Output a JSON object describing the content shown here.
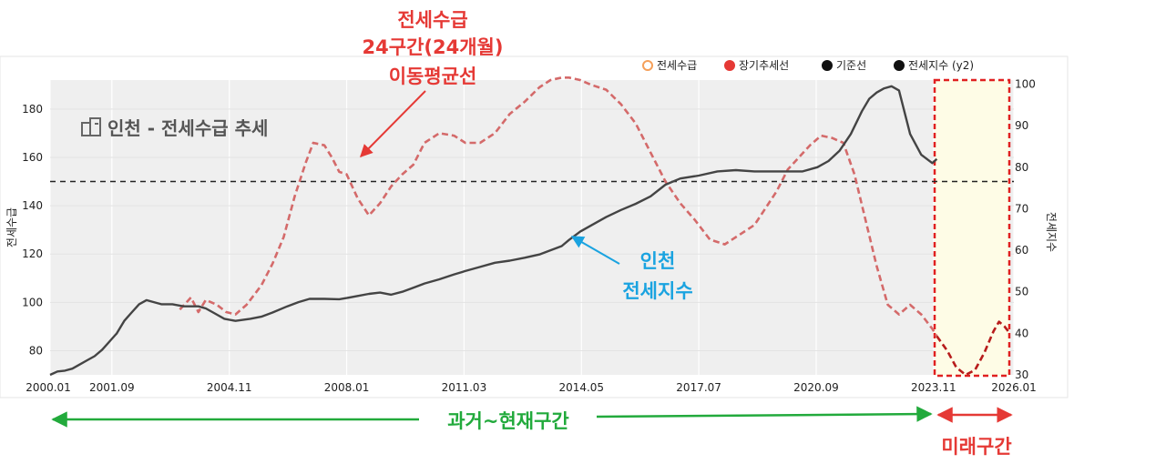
{
  "chart_data": {
    "type": "line",
    "title": "인천 - 전세수급 추세",
    "ylabel": "전세수급",
    "y2label": "전세지수",
    "ylim": [
      70,
      192
    ],
    "y2lim": [
      30,
      101
    ],
    "yticks": [
      80,
      100,
      120,
      140,
      160,
      180
    ],
    "y2ticks": [
      30,
      40,
      50,
      60,
      70,
      80,
      90,
      100
    ],
    "xticks": [
      "2000.01",
      "2001.09",
      "2004.11",
      "2008.01",
      "2011.03",
      "2014.05",
      "2017.07",
      "2020.09",
      "2023.11",
      "2026.01"
    ],
    "xrange": [
      2000.0,
      2026.0
    ],
    "grid": true,
    "legend_position": "top-right",
    "reference_line": 150,
    "legend": [
      {
        "name": "전세수급",
        "color": "#f5a05a",
        "marker": "open-circle"
      },
      {
        "name": "장기추세선",
        "color": "#e53935",
        "marker": "filled-circle"
      },
      {
        "name": "기준선",
        "color": "#111111",
        "marker": "filled-circle"
      },
      {
        "name": "전세지수 (y2)",
        "color": "#111111",
        "marker": "filled-circle"
      }
    ],
    "series": [
      {
        "name": "장기추세선",
        "axis": "y",
        "color": "#d46a6a",
        "dash": true,
        "x": [
          2003.5,
          2003.8,
          2004.0,
          2004.2,
          2004.5,
          2004.75,
          2005.0,
          2005.3,
          2005.7,
          2006.0,
          2006.3,
          2006.6,
          2006.9,
          2007.1,
          2007.4,
          2007.6,
          2007.8,
          2008.0,
          2008.3,
          2008.6,
          2008.9,
          2009.2,
          2009.5,
          2009.8,
          2010.1,
          2010.5,
          2010.9,
          2011.2,
          2011.6,
          2012.0,
          2012.4,
          2012.8,
          2013.2,
          2013.5,
          2013.8,
          2014.0,
          2014.3,
          2014.6,
          2015.0,
          2015.4,
          2015.8,
          2016.2,
          2016.6,
          2017.0,
          2017.4,
          2017.8,
          2018.2,
          2018.6,
          2019.0,
          2019.3,
          2019.6,
          2019.9,
          2020.2,
          2020.5,
          2020.8,
          2021.1,
          2021.4,
          2021.7,
          2022.0,
          2022.3,
          2022.6,
          2022.9,
          2023.2,
          2023.5,
          2023.8,
          2023.92
        ],
        "values": [
          97,
          102,
          96,
          101,
          99,
          96,
          95,
          99,
          107,
          116,
          127,
          144,
          158,
          166,
          165,
          160,
          154,
          153,
          143,
          136,
          141,
          148,
          153,
          157,
          166,
          170,
          169,
          166,
          166,
          170,
          178,
          183,
          189,
          192,
          193,
          193,
          192,
          190,
          188,
          182,
          174,
          162,
          150,
          141,
          134,
          126,
          124,
          128,
          132,
          139,
          146,
          155,
          160,
          165,
          169,
          168,
          166,
          153,
          134,
          115,
          99,
          95,
          99,
          95,
          89,
          86
        ]
      },
      {
        "name": "장기추세선 (미래)",
        "axis": "y",
        "color": "#b71c1c",
        "dash": true,
        "x": [
          2023.92,
          2024.2,
          2024.45,
          2024.7,
          2024.95,
          2025.2,
          2025.45,
          2025.6,
          2025.75,
          2025.85
        ],
        "values": [
          86,
          80,
          73,
          70,
          72,
          79,
          88,
          92,
          90,
          88
        ]
      },
      {
        "name": "전세지수 (y2)",
        "axis": "y2",
        "color": "#444444",
        "dash": false,
        "x": [
          2000.0,
          2000.2,
          2000.4,
          2000.6,
          2000.8,
          2001.0,
          2001.2,
          2001.4,
          2001.6,
          2001.8,
          2002.0,
          2002.2,
          2002.4,
          2002.6,
          2002.8,
          2003.0,
          2003.3,
          2003.6,
          2004.0,
          2004.2,
          2004.4,
          2004.7,
          2005.0,
          2005.4,
          2005.7,
          2006.0,
          2006.4,
          2006.7,
          2007.0,
          2007.4,
          2007.8,
          2008.0,
          2008.3,
          2008.6,
          2008.9,
          2009.2,
          2009.5,
          2009.8,
          2010.1,
          2010.5,
          2010.9,
          2011.2,
          2011.6,
          2012.0,
          2012.4,
          2012.8,
          2013.2,
          2013.5,
          2013.8,
          2014.0,
          2014.3,
          2014.6,
          2015.0,
          2015.4,
          2015.8,
          2016.2,
          2016.6,
          2017.0,
          2017.5,
          2018.0,
          2018.5,
          2019.0,
          2019.5,
          2019.9,
          2020.3,
          2020.7,
          2021.0,
          2021.3,
          2021.6,
          2021.9,
          2022.1,
          2022.3,
          2022.5,
          2022.7,
          2022.9,
          2023.2,
          2023.5,
          2023.8,
          2023.92
        ],
        "values": [
          30,
          30.8,
          31,
          31.5,
          32.5,
          33.5,
          34.5,
          36,
          38,
          40,
          43,
          45,
          47,
          48,
          47.5,
          47,
          47,
          46.5,
          46.5,
          46,
          45,
          43.5,
          43,
          43.5,
          44,
          45,
          46.5,
          47.5,
          48.3,
          48.3,
          48.2,
          48.5,
          49,
          49.5,
          49.8,
          49.3,
          50,
          51,
          52,
          53,
          54.2,
          55,
          56,
          57,
          57.5,
          58.2,
          59,
          60,
          61,
          62.5,
          64.5,
          66,
          68,
          69.7,
          71.2,
          73,
          75.8,
          77.3,
          78,
          79,
          79.3,
          79,
          79,
          79,
          79,
          80,
          81.5,
          84,
          88,
          93.5,
          96.5,
          98,
          99,
          99.5,
          98.5,
          88,
          83,
          81,
          82
        ]
      }
    ]
  },
  "annotations": {
    "trend_note_lines": [
      "전세수급",
      "24구간(24개월)",
      "이동평균선"
    ],
    "index_note_lines": [
      "인천",
      "전세지수"
    ],
    "past_label": "과거~현재구간",
    "future_label": "미래구간"
  }
}
